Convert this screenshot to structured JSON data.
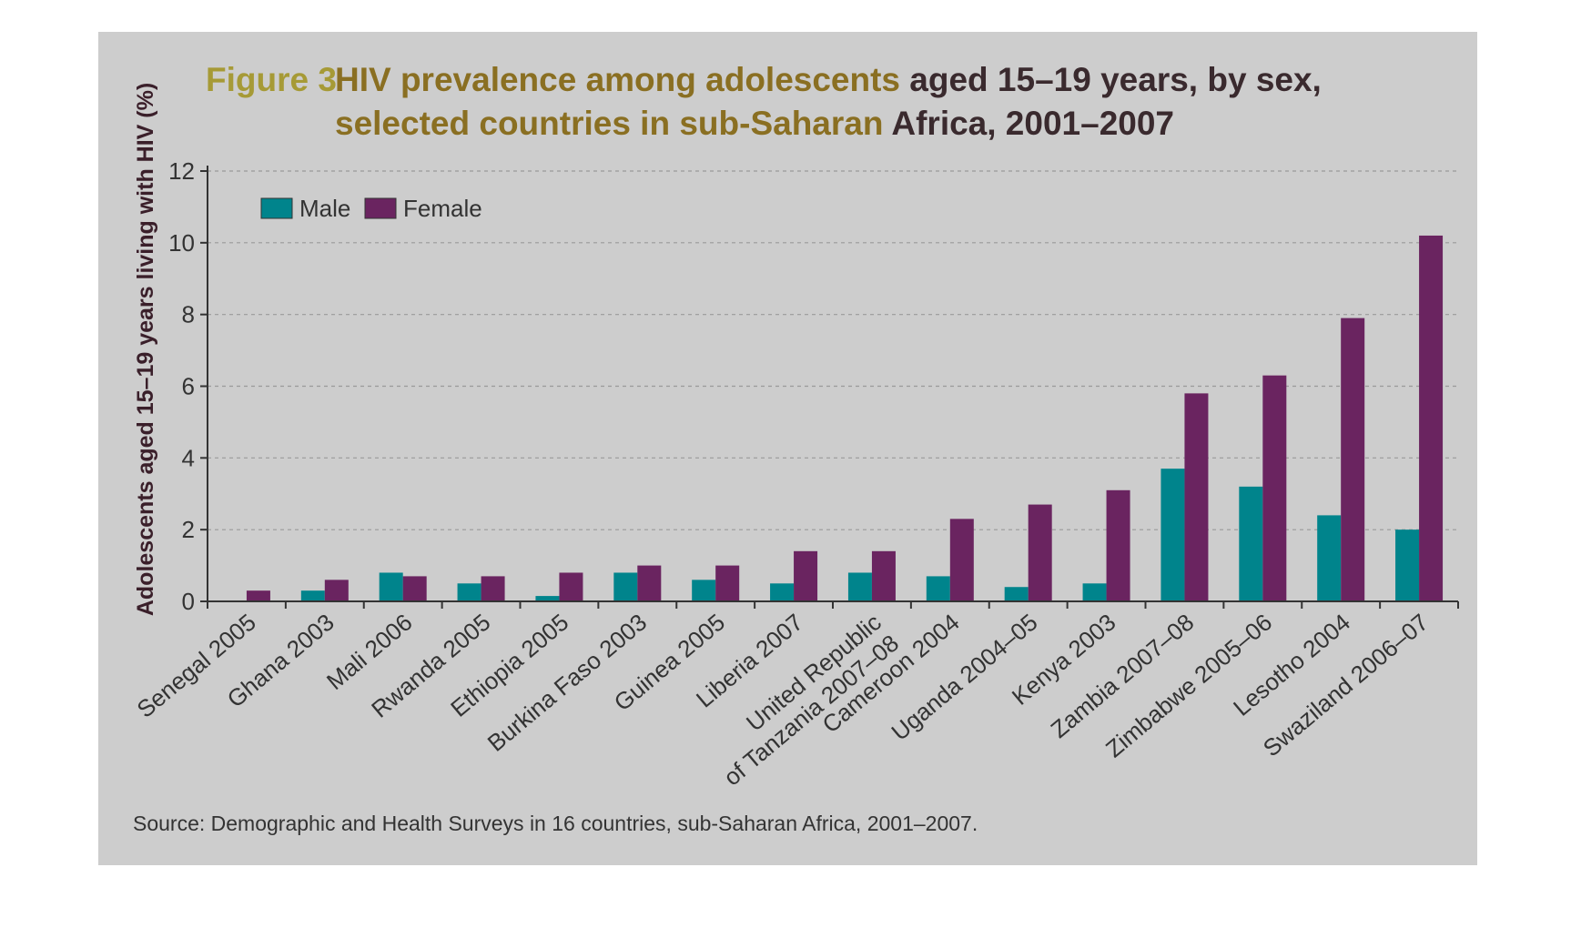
{
  "figure_label": "Figure 3",
  "title_line1_highlight": "HIV prevalence among adolescents",
  "title_line1_rest": " aged 15–19 years, by sex,",
  "title_line2_highlight": "selected countries in sub-Saharan",
  "title_line2_rest": " Africa, 2001–2007",
  "source": "Source: Demographic and Health Surveys in 16 countries, sub-Saharan Africa, 2001–2007.",
  "colors": {
    "male": "#00848c",
    "female": "#6a2460",
    "background": "#cdcdcd"
  },
  "chart_data": {
    "type": "bar",
    "title": "HIV prevalence among adolescents aged 15–19 years, by sex, selected countries in sub-Saharan Africa, 2001–2007",
    "xlabel": "",
    "ylabel": "Adolescents aged 15–19 years living with HIV (%)",
    "ylim": [
      0,
      12
    ],
    "yticks": [
      0,
      2,
      4,
      6,
      8,
      10,
      12
    ],
    "grid": true,
    "legend_position": "top-left",
    "categories": [
      [
        "Senegal 2005"
      ],
      [
        "Ghana 2003"
      ],
      [
        "Mali 2006"
      ],
      [
        "Rwanda 2005"
      ],
      [
        "Ethiopia 2005"
      ],
      [
        "Burkina Faso 2003"
      ],
      [
        "Guinea 2005"
      ],
      [
        "Liberia 2007"
      ],
      [
        "United Republic",
        "of Tanzania 2007–08"
      ],
      [
        "Cameroon 2004"
      ],
      [
        "Uganda 2004–05"
      ],
      [
        "Kenya 2003"
      ],
      [
        "Zambia 2007–08"
      ],
      [
        "Zimbabwe 2005–06"
      ],
      [
        "Lesotho 2004"
      ],
      [
        "Swaziland 2006–07"
      ]
    ],
    "series": [
      {
        "name": "Male",
        "values": [
          0.0,
          0.3,
          0.8,
          0.5,
          0.15,
          0.8,
          0.6,
          0.5,
          0.8,
          0.7,
          0.4,
          0.5,
          3.7,
          3.2,
          2.4,
          2.0
        ]
      },
      {
        "name": "Female",
        "values": [
          0.3,
          0.6,
          0.7,
          0.7,
          0.8,
          1.0,
          1.0,
          1.4,
          1.4,
          2.3,
          2.7,
          3.1,
          5.8,
          6.3,
          7.9,
          10.2
        ]
      }
    ]
  }
}
